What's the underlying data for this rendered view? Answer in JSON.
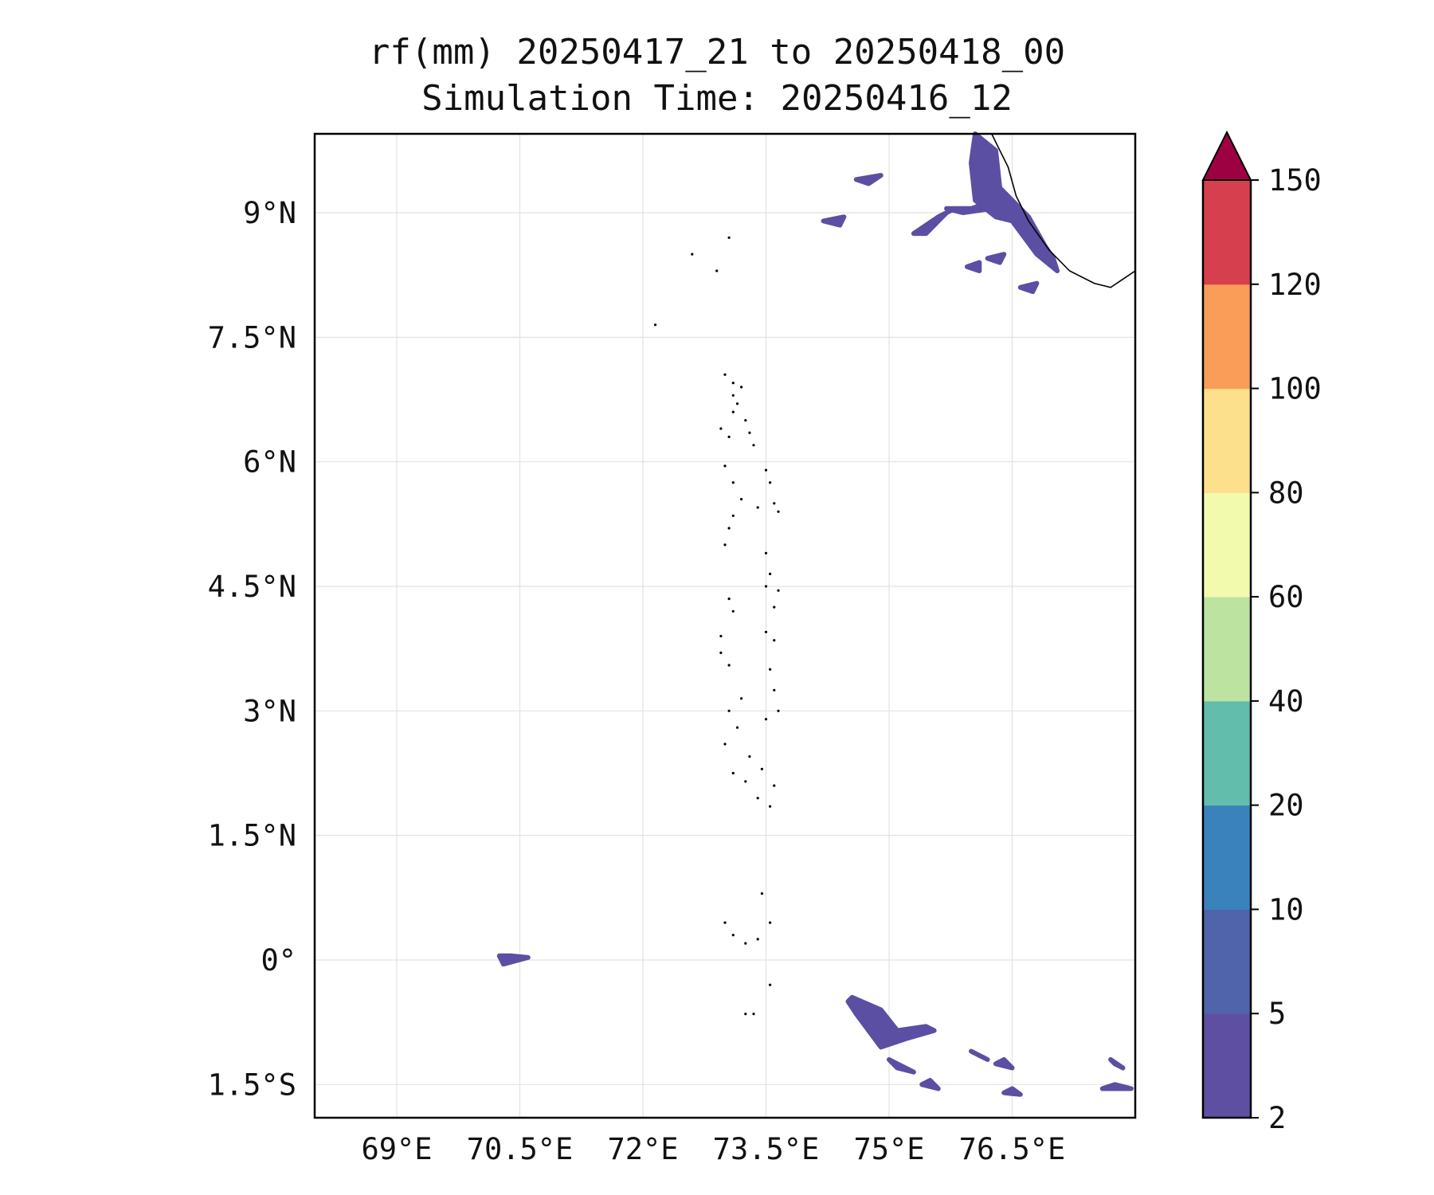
{
  "title": {
    "line1": "rf(mm) 20250417_21 to 20250418_00",
    "line2": "Simulation Time: 20250416_12"
  },
  "map": {
    "lon_range": [
      68.0,
      78.0
    ],
    "lat_range": [
      -1.9,
      9.95
    ],
    "x_ticks": [
      {
        "value": 69.0,
        "label": "69°E"
      },
      {
        "value": 70.5,
        "label": "70.5°E"
      },
      {
        "value": 72.0,
        "label": "72°E"
      },
      {
        "value": 73.5,
        "label": "73.5°E"
      },
      {
        "value": 75.0,
        "label": "75°E"
      },
      {
        "value": 76.5,
        "label": "76.5°E"
      }
    ],
    "y_ticks": [
      {
        "value": 9.0,
        "label": "9°N"
      },
      {
        "value": 7.5,
        "label": "7.5°N"
      },
      {
        "value": 6.0,
        "label": "6°N"
      },
      {
        "value": 4.5,
        "label": "4.5°N"
      },
      {
        "value": 3.0,
        "label": "3°N"
      },
      {
        "value": 1.5,
        "label": "1.5°N"
      },
      {
        "value": 0.0,
        "label": "0°"
      },
      {
        "value": -1.5,
        "label": "1.5°S"
      }
    ],
    "gridlines": true,
    "coastline_india": [
      [
        76.25,
        9.95
      ],
      [
        76.35,
        9.75
      ],
      [
        76.45,
        9.55
      ],
      [
        76.55,
        9.2
      ],
      [
        76.7,
        8.9
      ],
      [
        76.95,
        8.55
      ],
      [
        77.2,
        8.3
      ],
      [
        77.5,
        8.15
      ],
      [
        77.7,
        8.1
      ],
      [
        77.85,
        8.2
      ],
      [
        78.0,
        8.3
      ]
    ],
    "island_dots": [
      [
        73.0,
        7.05
      ],
      [
        73.1,
        6.95
      ],
      [
        73.2,
        6.9
      ],
      [
        73.1,
        6.8
      ],
      [
        73.15,
        6.7
      ],
      [
        73.1,
        6.6
      ],
      [
        73.25,
        6.5
      ],
      [
        73.3,
        6.35
      ],
      [
        73.35,
        6.2
      ],
      [
        72.95,
        6.4
      ],
      [
        73.05,
        6.3
      ],
      [
        73.0,
        5.95
      ],
      [
        73.1,
        5.75
      ],
      [
        73.2,
        5.55
      ],
      [
        73.1,
        5.35
      ],
      [
        73.05,
        5.2
      ],
      [
        73.0,
        5.0
      ],
      [
        73.5,
        5.9
      ],
      [
        73.55,
        5.75
      ],
      [
        73.4,
        5.45
      ],
      [
        73.6,
        5.5
      ],
      [
        73.65,
        5.4
      ],
      [
        73.5,
        4.9
      ],
      [
        73.55,
        4.65
      ],
      [
        73.5,
        4.5
      ],
      [
        73.65,
        4.45
      ],
      [
        73.6,
        4.25
      ],
      [
        73.05,
        4.35
      ],
      [
        73.1,
        4.2
      ],
      [
        72.95,
        3.9
      ],
      [
        72.95,
        3.7
      ],
      [
        73.05,
        3.55
      ],
      [
        73.5,
        3.95
      ],
      [
        73.6,
        3.85
      ],
      [
        73.55,
        3.5
      ],
      [
        73.6,
        3.25
      ],
      [
        73.65,
        3.0
      ],
      [
        73.5,
        2.9
      ],
      [
        73.2,
        3.15
      ],
      [
        73.05,
        3.0
      ],
      [
        73.15,
        2.8
      ],
      [
        73.0,
        2.6
      ],
      [
        73.3,
        2.45
      ],
      [
        73.45,
        2.3
      ],
      [
        73.1,
        2.25
      ],
      [
        73.25,
        2.15
      ],
      [
        73.4,
        1.95
      ],
      [
        73.55,
        1.85
      ],
      [
        73.6,
        2.1
      ],
      [
        73.45,
        0.8
      ],
      [
        73.55,
        0.45
      ],
      [
        73.0,
        0.45
      ],
      [
        73.1,
        0.3
      ],
      [
        73.25,
        0.2
      ],
      [
        73.4,
        0.25
      ],
      [
        73.55,
        -0.3
      ],
      [
        73.25,
        -0.65
      ],
      [
        73.35,
        -0.65
      ],
      [
        72.9,
        8.3
      ],
      [
        72.6,
        8.5
      ],
      [
        73.05,
        8.7
      ],
      [
        72.15,
        7.65
      ]
    ],
    "rain_patches": [
      {
        "pts": [
          [
            76.0,
            9.6
          ],
          [
            76.05,
            9.95
          ],
          [
            76.3,
            9.75
          ],
          [
            76.35,
            9.3
          ],
          [
            76.7,
            8.95
          ],
          [
            76.9,
            8.6
          ],
          [
            77.0,
            8.45
          ],
          [
            77.05,
            8.3
          ],
          [
            76.8,
            8.5
          ],
          [
            76.5,
            8.9
          ],
          [
            76.3,
            8.95
          ],
          [
            76.05,
            9.15
          ]
        ]
      },
      {
        "pts": [
          [
            75.3,
            8.75
          ],
          [
            75.6,
            8.95
          ],
          [
            75.8,
            9.05
          ],
          [
            75.7,
            9.0
          ],
          [
            75.45,
            8.75
          ]
        ]
      },
      {
        "pts": [
          [
            75.7,
            9.05
          ],
          [
            76.0,
            9.05
          ],
          [
            76.3,
            9.15
          ],
          [
            76.25,
            9.05
          ],
          [
            75.9,
            9.0
          ]
        ]
      },
      {
        "pts": [
          [
            74.6,
            9.4
          ],
          [
            74.9,
            9.45
          ],
          [
            74.75,
            9.35
          ]
        ]
      },
      {
        "pts": [
          [
            74.2,
            8.9
          ],
          [
            74.45,
            8.95
          ],
          [
            74.4,
            8.85
          ]
        ]
      },
      {
        "pts": [
          [
            76.6,
            8.1
          ],
          [
            76.8,
            8.15
          ],
          [
            76.75,
            8.05
          ]
        ]
      },
      {
        "pts": [
          [
            75.95,
            8.35
          ],
          [
            76.1,
            8.4
          ],
          [
            76.1,
            8.3
          ]
        ]
      },
      {
        "pts": [
          [
            76.2,
            8.45
          ],
          [
            76.4,
            8.5
          ],
          [
            76.35,
            8.4
          ]
        ]
      },
      {
        "pts": [
          [
            70.25,
            0.05
          ],
          [
            70.4,
            0.05
          ],
          [
            70.6,
            0.03
          ],
          [
            70.3,
            -0.05
          ]
        ]
      },
      {
        "pts": [
          [
            74.55,
            -0.45
          ],
          [
            74.9,
            -0.6
          ],
          [
            75.1,
            -0.85
          ],
          [
            75.45,
            -0.8
          ],
          [
            75.55,
            -0.85
          ],
          [
            75.2,
            -0.95
          ],
          [
            74.9,
            -1.05
          ],
          [
            74.6,
            -0.65
          ],
          [
            74.5,
            -0.5
          ]
        ]
      },
      {
        "pts": [
          [
            75.0,
            -1.2
          ],
          [
            75.3,
            -1.35
          ],
          [
            75.1,
            -1.3
          ]
        ]
      },
      {
        "pts": [
          [
            76.0,
            -1.1
          ],
          [
            76.2,
            -1.2
          ],
          [
            76.1,
            -1.15
          ]
        ]
      },
      {
        "pts": [
          [
            76.3,
            -1.25
          ],
          [
            76.5,
            -1.3
          ],
          [
            76.4,
            -1.2
          ]
        ]
      },
      {
        "pts": [
          [
            77.7,
            -1.2
          ],
          [
            77.85,
            -1.3
          ],
          [
            77.75,
            -1.25
          ]
        ]
      },
      {
        "pts": [
          [
            75.4,
            -1.5
          ],
          [
            75.6,
            -1.55
          ],
          [
            75.5,
            -1.45
          ]
        ]
      },
      {
        "pts": [
          [
            77.6,
            -1.55
          ],
          [
            77.95,
            -1.55
          ],
          [
            77.75,
            -1.5
          ]
        ]
      },
      {
        "pts": [
          [
            76.4,
            -1.6
          ],
          [
            76.6,
            -1.62
          ],
          [
            76.5,
            -1.55
          ]
        ]
      }
    ],
    "rain_color": "#5b4fa3"
  },
  "colorbar": {
    "levels": [
      "2",
      "5",
      "10",
      "20",
      "40",
      "60",
      "80",
      "100",
      "120",
      "150"
    ],
    "colors": [
      "#5e4fa2",
      "#4f64ab",
      "#3a82bc",
      "#63bdad",
      "#bde3a0",
      "#f2faae",
      "#fce08b",
      "#f99d59",
      "#d6404e"
    ],
    "extend_color": "#9e0142",
    "extend": "max"
  }
}
